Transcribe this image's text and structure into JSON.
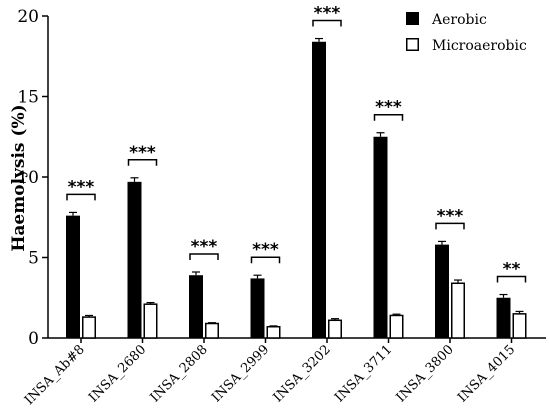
{
  "chart_data": {
    "type": "bar",
    "ylabel": "Haemolysis (%)",
    "xlabel": "",
    "ylim": [
      0,
      20
    ],
    "yticks": [
      0,
      5,
      10,
      15,
      20
    ],
    "grid": false,
    "legend_position": "top-right",
    "categories": [
      "INSA_Ab#8",
      "INSA_2680",
      "INSA_2808",
      "INSA_2999",
      "INSA_3202",
      "INSA_3711",
      "INSA_3800",
      "INSA_4015"
    ],
    "series": [
      {
        "name": "Aerobic",
        "color": "#000000",
        "fill": "solid",
        "values": [
          7.6,
          9.7,
          3.9,
          3.7,
          18.4,
          12.5,
          5.8,
          2.5
        ],
        "errors": [
          0.2,
          0.25,
          0.2,
          0.2,
          0.2,
          0.25,
          0.2,
          0.2
        ]
      },
      {
        "name": "Microaerobic",
        "color": "#ffffff",
        "fill": "open",
        "values": [
          1.3,
          2.1,
          0.9,
          0.7,
          1.1,
          1.4,
          3.4,
          1.5
        ],
        "errors": [
          0.1,
          0.1,
          0.05,
          0.05,
          0.1,
          0.08,
          0.2,
          0.15
        ]
      }
    ],
    "significance": [
      "***",
      "***",
      "***",
      "***",
      "***",
      "***",
      "***",
      "**"
    ]
  }
}
